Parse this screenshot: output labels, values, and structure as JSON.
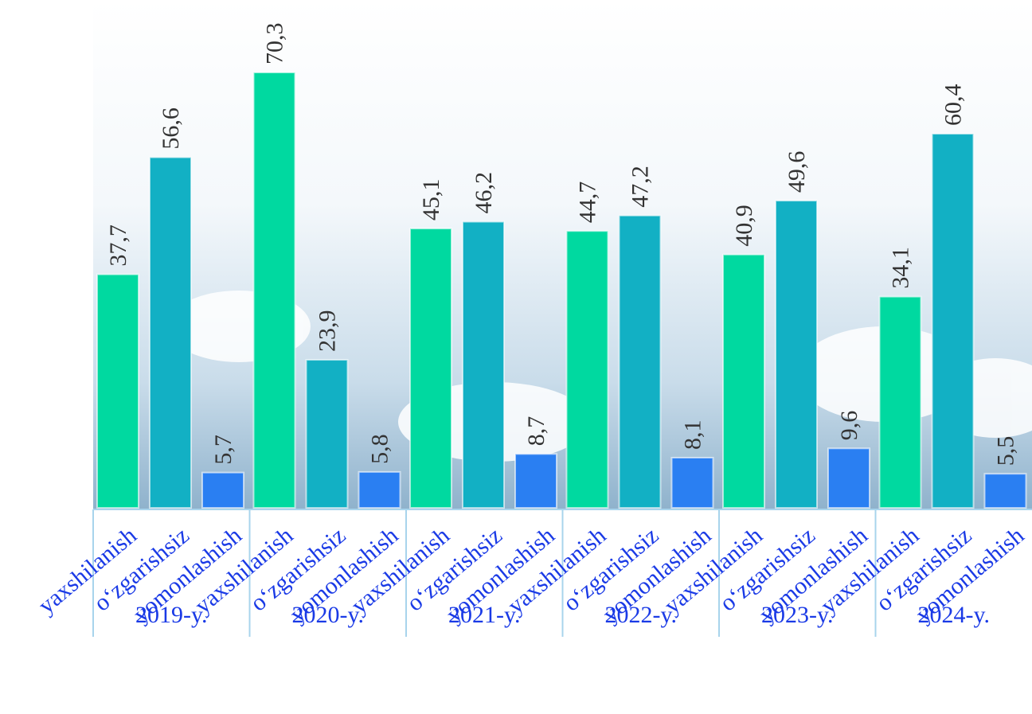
{
  "chart_data": {
    "type": "bar",
    "categories": [
      "2019-y.",
      "2020-y.",
      "2021-y.",
      "2022-y.",
      "2023-y.",
      "2024-y."
    ],
    "series": [
      {
        "name": "yaxshilanish",
        "color": "#00d9a0",
        "values": [
          37.7,
          70.3,
          45.1,
          44.7,
          40.9,
          34.1
        ],
        "value_labels": [
          "37,7",
          "70,3",
          "45,1",
          "44,7",
          "40,9",
          "34,1"
        ]
      },
      {
        "name": "o‘zgarishsiz",
        "color": "#12b0c4",
        "values": [
          56.6,
          23.9,
          46.2,
          47.2,
          49.6,
          60.4
        ],
        "value_labels": [
          "56,6",
          "23,9",
          "46,2",
          "47,2",
          "49,6",
          "60,4"
        ]
      },
      {
        "name": "yomonlashish",
        "color": "#2a7ff2",
        "values": [
          5.7,
          5.8,
          8.7,
          8.1,
          9.6,
          5.5
        ],
        "value_labels": [
          "5,7",
          "5,8",
          "8,7",
          "8,1",
          "9,6",
          "5,5"
        ]
      }
    ],
    "ylim": [
      0,
      82
    ]
  }
}
